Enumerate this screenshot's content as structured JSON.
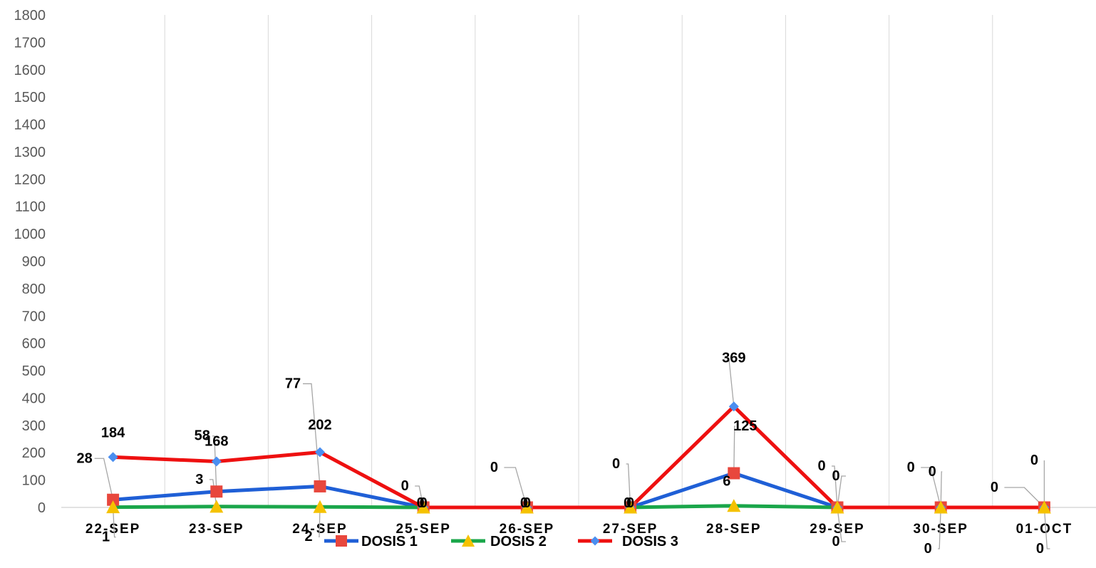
{
  "chart_data": {
    "type": "line",
    "categories": [
      "22-SEP",
      "23-SEP",
      "24-SEP",
      "25-SEP",
      "26-SEP",
      "27-SEP",
      "28-SEP",
      "29-SEP",
      "30-SEP",
      "01-OCT"
    ],
    "series": [
      {
        "name": "DOSIS 1",
        "values": [
          28,
          58,
          77,
          0,
          0,
          0,
          125,
          0,
          0,
          0
        ],
        "color": "#1f5fd6",
        "marker": "square",
        "marker_color": "#e8473d"
      },
      {
        "name": "DOSIS 2",
        "values": [
          1,
          3,
          2,
          0,
          0,
          0,
          6,
          0,
          0,
          0
        ],
        "color": "#1aa64a",
        "marker": "triangle",
        "marker_color": "#f5c200"
      },
      {
        "name": "DOSIS 3",
        "values": [
          184,
          168,
          202,
          0,
          0,
          0,
          369,
          0,
          0,
          0
        ],
        "color": "#ee1010",
        "marker": "diamond",
        "marker_color": "#4a8ef0"
      }
    ],
    "y_ticks": [
      "0",
      "100",
      "200",
      "300",
      "400",
      "500",
      "600",
      "700",
      "800",
      "900",
      "1000",
      "1100",
      "1200",
      "1300",
      "1400",
      "1500",
      "1600",
      "1700",
      "1800"
    ],
    "ylim": [
      0,
      1800
    ],
    "grid": "vertical",
    "legend_position": "bottom",
    "data_labels": true
  }
}
